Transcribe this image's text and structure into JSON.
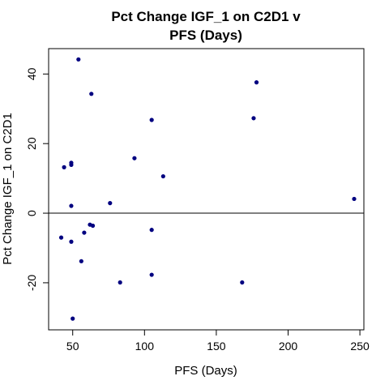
{
  "chart_data": {
    "type": "scatter",
    "title": [
      "Pct Change IGF_1 on C2D1 v",
      "PFS (Days)"
    ],
    "xlabel": "PFS (Days)",
    "ylabel": "Pct Change IGF_1 on C2D1",
    "xlim": [
      40,
      246
    ],
    "ylim": [
      -30.5,
      44.5
    ],
    "xticks": [
      50,
      100,
      150,
      200,
      250
    ],
    "yticks": [
      -20,
      0,
      20,
      40
    ],
    "reference_line_y": 0,
    "point_color": "#000080",
    "points": [
      {
        "x": 54,
        "y": 44.2
      },
      {
        "x": 63,
        "y": 34.3
      },
      {
        "x": 178,
        "y": 37.6
      },
      {
        "x": 105,
        "y": 26.8
      },
      {
        "x": 176,
        "y": 27.3
      },
      {
        "x": 93,
        "y": 15.8
      },
      {
        "x": 49,
        "y": 14.5
      },
      {
        "x": 49,
        "y": 13.9
      },
      {
        "x": 44,
        "y": 13.2
      },
      {
        "x": 113,
        "y": 10.6
      },
      {
        "x": 246,
        "y": 4.1
      },
      {
        "x": 76,
        "y": 2.9
      },
      {
        "x": 49,
        "y": 2.1
      },
      {
        "x": 62,
        "y": -3.3
      },
      {
        "x": 64,
        "y": -3.6
      },
      {
        "x": 105,
        "y": -4.8
      },
      {
        "x": 58,
        "y": -5.6
      },
      {
        "x": 42,
        "y": -7.0
      },
      {
        "x": 49,
        "y": -8.2
      },
      {
        "x": 56,
        "y": -13.8
      },
      {
        "x": 105,
        "y": -17.7
      },
      {
        "x": 83,
        "y": -19.9
      },
      {
        "x": 168,
        "y": -19.9
      },
      {
        "x": 50,
        "y": -30.3
      }
    ]
  }
}
